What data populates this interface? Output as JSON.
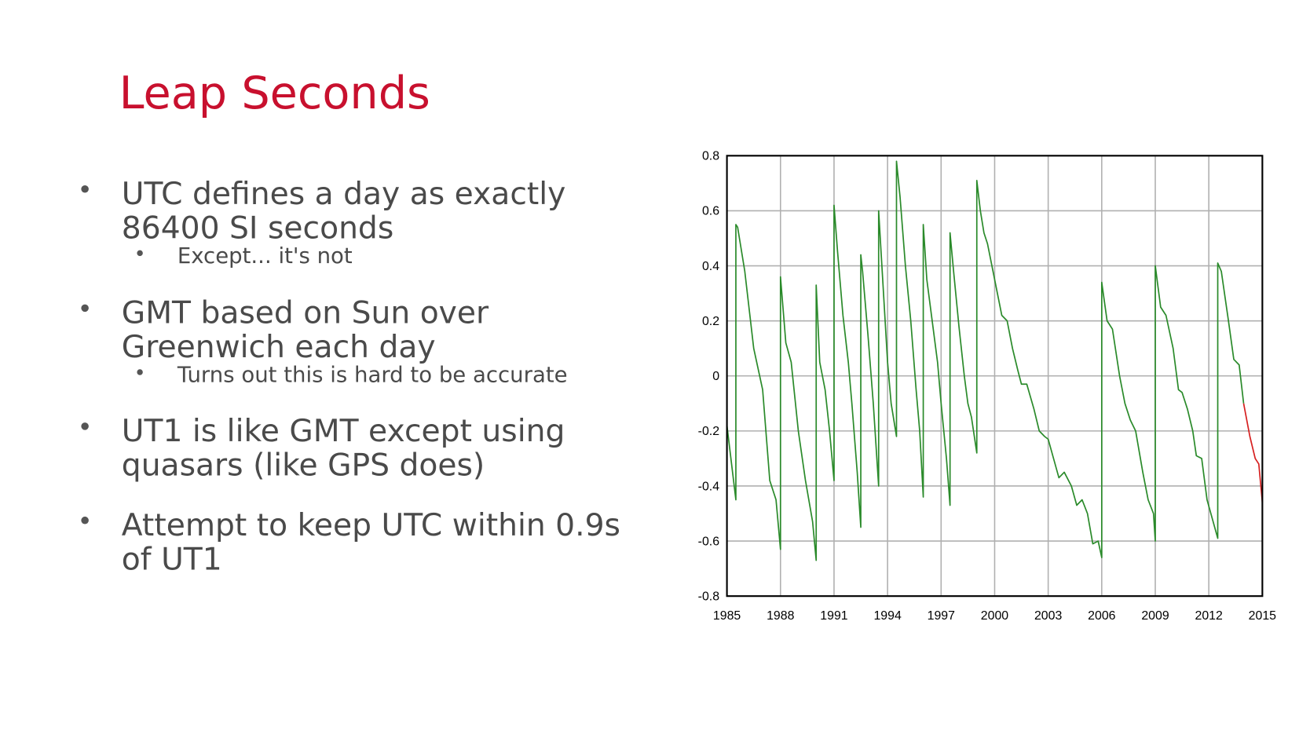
{
  "title": "Leap Seconds",
  "bullets": [
    {
      "lines": [
        "UTC defines a day as exactly",
        "86400 SI seconds"
      ],
      "sub": "Except... it's not"
    },
    {
      "lines": [
        "GMT based on Sun over",
        "Greenwich each day"
      ],
      "sub": "Turns out this is hard to be accurate"
    },
    {
      "lines": [
        "UT1 is like GMT except using",
        "quasars (like GPS does)"
      ]
    },
    {
      "lines": [
        "Attempt to keep UTC within 0.9s",
        "of UT1"
      ]
    }
  ],
  "chart_data": {
    "type": "line",
    "grid": true,
    "xlim": [
      1985,
      2015
    ],
    "xticks": [
      1985,
      1988,
      1991,
      1994,
      1997,
      2000,
      2003,
      2006,
      2009,
      2012,
      2015
    ],
    "ylim": [
      -0.8,
      0.8
    ],
    "yticks": [
      -0.8,
      -0.6,
      -0.4,
      -0.2,
      0,
      0.2,
      0.4,
      0.6,
      0.8
    ],
    "series": [
      {
        "color": "#2a8a2a",
        "x": [
          1985,
          1985.5,
          1985.5,
          1985.6,
          1986,
          1986.5,
          1987,
          1987.4,
          1987.75,
          1988,
          1988,
          1988.3,
          1988.6,
          1989,
          1989.4,
          1989.8,
          1990,
          1990,
          1990.2,
          1990.5,
          1990.75,
          1991,
          1991,
          1991.2,
          1991.5,
          1991.8,
          1992,
          1992.3,
          1992.5,
          1992.5,
          1992.6,
          1992.9,
          1993.2,
          1993.5,
          1993.5,
          1993.7,
          1994,
          1994.2,
          1994.5,
          1994.5,
          1994.7,
          1995,
          1995.3,
          1995.6,
          1995.8,
          1996,
          1996,
          1996.2,
          1996.5,
          1996.8,
          1997,
          1997.3,
          1997.5,
          1997.5,
          1997.7,
          1998,
          1998.3,
          1998.5,
          1998.7,
          1999,
          1999,
          1999.2,
          1999.4,
          1999.6,
          2000,
          2000.4,
          2000.7,
          2001,
          2001.3,
          2001.5,
          2001.8,
          2002.2,
          2002.5,
          2002.8,
          2003,
          2003.3,
          2003.6,
          2003.9,
          2004.3,
          2004.6,
          2004.9,
          2005.2,
          2005.5,
          2005.8,
          2006,
          2006,
          2006.3,
          2006.6,
          2007,
          2007.3,
          2007.6,
          2007.9,
          2008.3,
          2008.6,
          2008.9,
          2009,
          2009,
          2009.3,
          2009.6,
          2010,
          2010.3,
          2010.5,
          2010.8,
          2011.1,
          2011.3,
          2011.6,
          2011.9,
          2012.5,
          2012.5,
          2012.7,
          2013.1,
          2013.4,
          2013.7,
          2013.95
        ],
        "values": [
          -0.18,
          -0.45,
          0.55,
          0.54,
          0.38,
          0.1,
          -0.05,
          -0.38,
          -0.45,
          -0.63,
          0.36,
          0.12,
          0.05,
          -0.2,
          -0.38,
          -0.53,
          -0.67,
          0.33,
          0.05,
          -0.05,
          -0.2,
          -0.38,
          0.62,
          0.45,
          0.22,
          0.05,
          -0.1,
          -0.35,
          -0.55,
          0.44,
          0.38,
          0.15,
          -0.1,
          -0.4,
          0.6,
          0.38,
          0.05,
          -0.1,
          -0.22,
          0.78,
          0.65,
          0.4,
          0.2,
          -0.05,
          -0.2,
          -0.44,
          0.55,
          0.35,
          0.2,
          0.05,
          -0.1,
          -0.3,
          -0.47,
          0.52,
          0.38,
          0.18,
          0,
          -0.1,
          -0.15,
          -0.28,
          0.71,
          0.6,
          0.52,
          0.48,
          0.35,
          0.22,
          0.2,
          0.1,
          0.02,
          -0.03,
          -0.03,
          -0.12,
          -0.2,
          -0.22,
          -0.23,
          -0.3,
          -0.37,
          -0.35,
          -0.4,
          -0.47,
          -0.45,
          -0.5,
          -0.61,
          -0.6,
          -0.66,
          0.34,
          0.2,
          0.17,
          0,
          -0.1,
          -0.16,
          -0.2,
          -0.35,
          -0.45,
          -0.5,
          -0.6,
          0.4,
          0.25,
          0.22,
          0.1,
          -0.05,
          -0.06,
          -0.12,
          -0.2,
          -0.29,
          -0.3,
          -0.45,
          -0.59,
          0.41,
          0.38,
          0.2,
          0.06,
          0.04,
          -0.1
        ]
      },
      {
        "color": "#d62020",
        "x": [
          2013.95,
          2014.3,
          2014.6,
          2014.8,
          2015
        ],
        "values": [
          -0.1,
          -0.22,
          -0.3,
          -0.32,
          -0.46
        ]
      }
    ]
  }
}
